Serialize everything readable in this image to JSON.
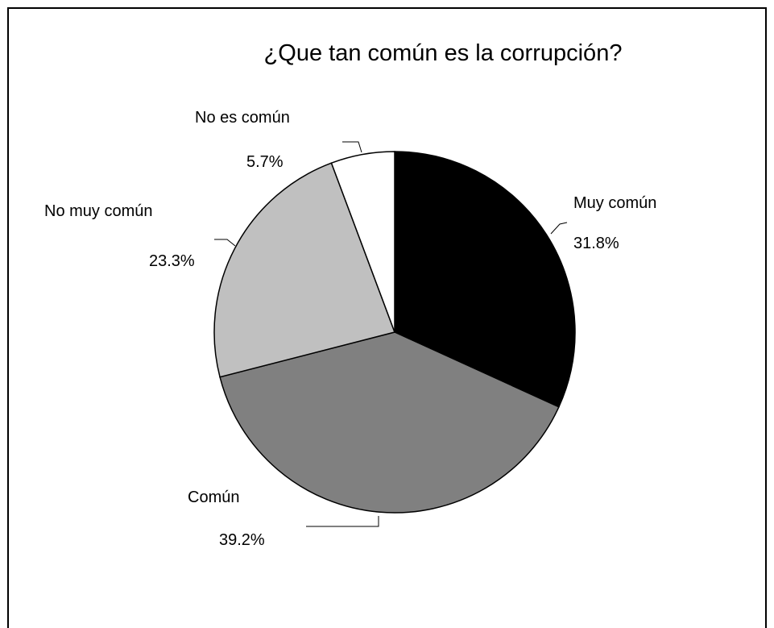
{
  "chart_data": {
    "type": "pie",
    "title": "¿Que tan común es la corrupción?",
    "slices": [
      {
        "name": "Muy común",
        "value": 31.8,
        "label": "31.8%",
        "color": "#000000"
      },
      {
        "name": "Común",
        "value": 39.2,
        "label": "39.2%",
        "color": "#808080"
      },
      {
        "name": "No muy común",
        "value": 23.3,
        "label": "23.3%",
        "color": "#c0c0c0"
      },
      {
        "name": "No es común",
        "value": 5.7,
        "label": "5.7%",
        "color": "#ffffff"
      }
    ],
    "legend": "none",
    "start": "12 o'clock, clockwise"
  }
}
